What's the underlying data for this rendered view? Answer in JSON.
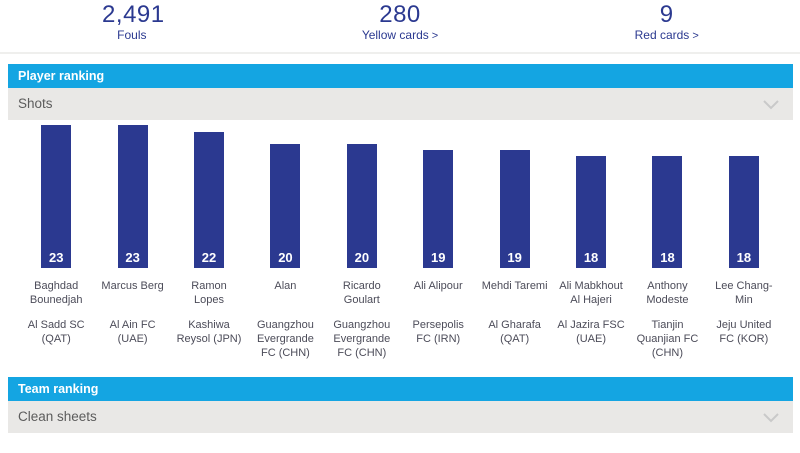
{
  "stats": {
    "items": [
      {
        "value": "2,491",
        "label": "Fouls",
        "arrow": ""
      },
      {
        "value": "280",
        "label": "Yellow cards",
        "arrow": ">"
      },
      {
        "value": "9",
        "label": "Red cards",
        "arrow": ">"
      }
    ]
  },
  "player_ranking": {
    "header": "Player ranking",
    "selected_option": "Shots"
  },
  "team_ranking": {
    "header": "Team ranking",
    "selected_option": "Clean sheets"
  },
  "chart_data": {
    "type": "bar",
    "title": "Player ranking – Shots",
    "categories": [
      "Baghdad Bounedjah",
      "Marcus Berg",
      "Ramon Lopes",
      "Alan",
      "Ricardo Goulart",
      "Ali Alipour",
      "Mehdi Taremi",
      "Ali Mabkhout Al Hajeri",
      "Anthony Modeste",
      "Lee Chang-Min"
    ],
    "team_labels": [
      "Al Sadd SC (QAT)",
      "Al Ain FC (UAE)",
      "Kashiwa Reysol (JPN)",
      "Guangzhou Evergrande FC (CHN)",
      "Guangzhou Evergrande FC (CHN)",
      "Persepolis FC (IRN)",
      "Al Gharafa (QAT)",
      "Al Jazira FSC (UAE)",
      "Tianjin Quanjian FC (CHN)",
      "Jeju United FC (KOR)"
    ],
    "values": [
      23,
      23,
      22,
      20,
      20,
      19,
      19,
      18,
      18,
      18
    ],
    "value_labels_inside_bars": true,
    "xlabel": "",
    "ylabel": "",
    "ylim": [
      0,
      23
    ],
    "grid": false,
    "legend": false
  },
  "colors": {
    "accent_blue": "#14A5E2",
    "bar_navy": "#2B3990",
    "stat_text": "#2B3990",
    "name_text": "#4C4C59",
    "subbar_bg": "#E9E8E6",
    "subbar_text": "#5C5C5C",
    "chevron": "#C9C9C9",
    "bar_value_text": "#FFFFFF"
  }
}
